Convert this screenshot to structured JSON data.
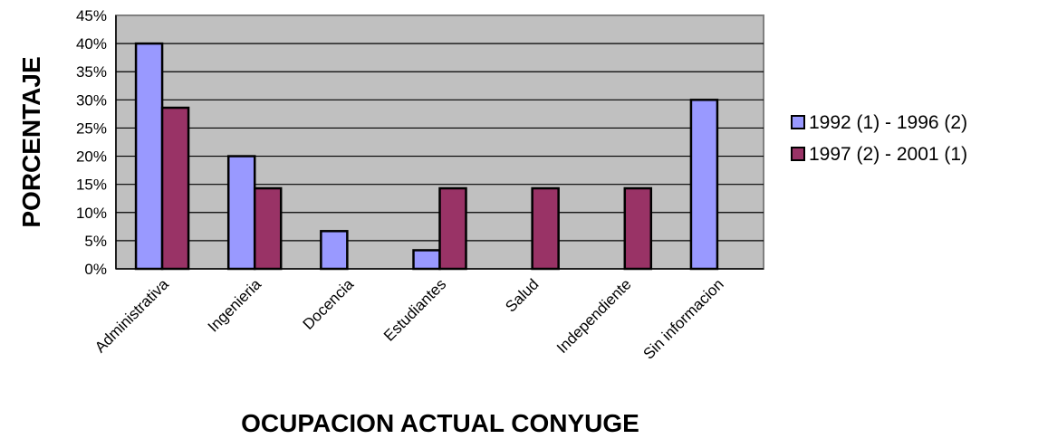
{
  "chart_data": {
    "type": "bar",
    "title": "",
    "xlabel": "OCUPACION ACTUAL CONYUGE",
    "ylabel": "PORCENTAJE",
    "ylim": [
      0,
      45
    ],
    "ytick_step": 5,
    "ytick_suffix": "%",
    "grid": true,
    "legend_position": "right",
    "categories": [
      "Administrativa",
      "Ingenieria",
      "Docencia",
      "Estudiantes",
      "Salud",
      "Independiente",
      "Sin informacion"
    ],
    "series": [
      {
        "name": "1992 (1) - 1996 (2)",
        "color": "#9999ff",
        "values": [
          40,
          20,
          6.7,
          3.3,
          0,
          0,
          30
        ]
      },
      {
        "name": "1997 (2) - 2001 (1)",
        "color": "#993366",
        "values": [
          28.6,
          14.3,
          0,
          14.3,
          14.3,
          14.3,
          0
        ]
      }
    ],
    "plot_background": "#c0c0c0"
  }
}
